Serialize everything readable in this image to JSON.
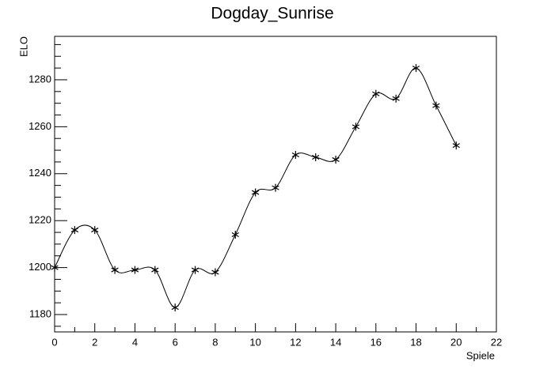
{
  "chart_data": {
    "type": "line",
    "title": "Dogday_Sunrise",
    "x_label": "Spiele",
    "y_label": "ELO",
    "x": [
      0,
      1,
      2,
      3,
      4,
      5,
      6,
      7,
      8,
      9,
      10,
      11,
      12,
      13,
      14,
      15,
      16,
      17,
      18,
      19,
      20
    ],
    "series": [
      {
        "color": "#000000",
        "values": [
          1200,
          1216,
          1216,
          1199,
          1199,
          1199,
          1183,
          1199,
          1198,
          1214,
          1232,
          1234,
          1248,
          1247,
          1246,
          1260,
          1274,
          1272,
          1285,
          1269,
          1252
        ]
      }
    ],
    "xlim": [
      0,
      22
    ],
    "xticks": [
      0,
      2,
      4,
      6,
      8,
      10,
      12,
      14,
      16,
      18,
      20,
      22
    ],
    "ylim": [
      1172.6,
      1298.5
    ],
    "yticks": [
      1180,
      1200,
      1220,
      1240,
      1260,
      1280
    ],
    "grid": false
  }
}
